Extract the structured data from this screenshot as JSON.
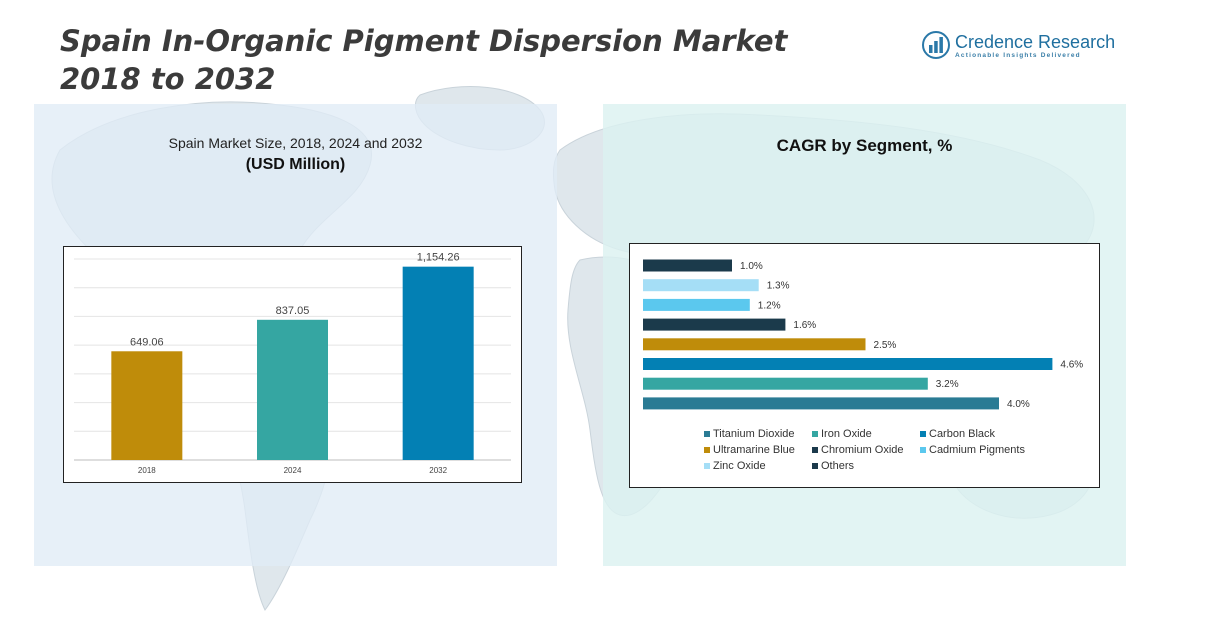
{
  "page": {
    "title_line1": "Spain In-Organic Pigment Dispersion Market",
    "title_line2": "2018 to 2032"
  },
  "logo": {
    "name": "Credence Research",
    "tagline": "Actionable Insights Delivered",
    "icon": "bar-chart-logo-icon"
  },
  "left_panel": {
    "subtitle": "Spain Market Size, 2018, 2024 and 2032",
    "unit": "(USD Million)"
  },
  "right_panel": {
    "title": "CAGR by Segment, %"
  },
  "chart_data": [
    {
      "type": "bar",
      "categories": [
        "2018",
        "2024",
        "2032"
      ],
      "values": [
        649.06,
        837.05,
        1154.26
      ],
      "value_labels": [
        "649.06",
        "837.05",
        "1,154.26"
      ],
      "colors": [
        "#bf8c0a",
        "#35a6a2",
        "#0380b4"
      ],
      "ylim": [
        0,
        1200
      ],
      "grid": true
    },
    {
      "type": "bar",
      "orientation": "horizontal",
      "series": [
        {
          "name": "Titanium Dioxide",
          "value": 4.0,
          "label": "4.0%",
          "color": "#2a7b94"
        },
        {
          "name": "Iron Oxide",
          "value": 3.2,
          "label": "3.2%",
          "color": "#35a6a2"
        },
        {
          "name": "Carbon Black",
          "value": 4.6,
          "label": "4.6%",
          "color": "#0380b4"
        },
        {
          "name": "Ultramarine Blue",
          "value": 2.5,
          "label": "2.5%",
          "color": "#bf8c0a"
        },
        {
          "name": "Chromium Oxide",
          "value": 1.6,
          "label": "1.6%",
          "color": "#1b3a4b"
        },
        {
          "name": "Cadmium Pigments",
          "value": 1.2,
          "label": "1.2%",
          "color": "#5bc8ee"
        },
        {
          "name": "Zinc Oxide",
          "value": 1.3,
          "label": "1.3%",
          "color": "#a5def6"
        },
        {
          "name": "Others",
          "value": 1.0,
          "label": "1.0%",
          "color": "#1b3a4b"
        }
      ],
      "xlim": [
        0,
        5
      ],
      "legend_position": "bottom"
    }
  ]
}
